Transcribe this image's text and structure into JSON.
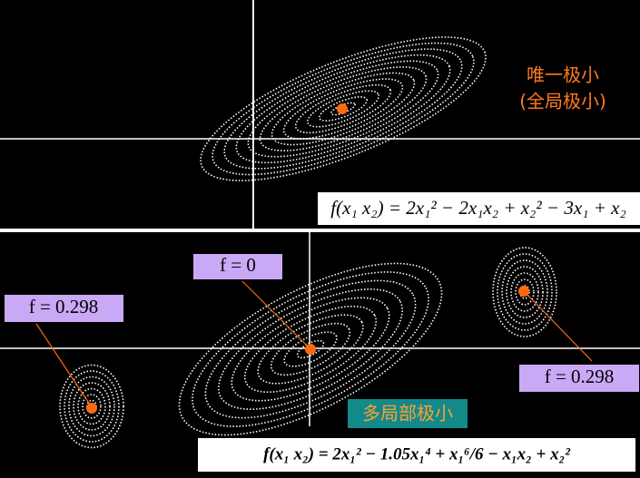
{
  "top": {
    "label_line1": "唯一极小",
    "label_line2": "(全局极小)",
    "formula": "f(x₁ x₂) = 2x₁² − 2x₁x₂ + x₂² − 3x₁ + x₂"
  },
  "bottom": {
    "center_label": "f = 0",
    "left_label": "f = 0.298",
    "right_label": "f = 0.298",
    "caption": "多局部极小",
    "formula": "f(x₁ x₂) = 2x₁² − 1.05x₁⁴ + x₁⁶/6 − x₁x₂ + x₂²"
  }
}
